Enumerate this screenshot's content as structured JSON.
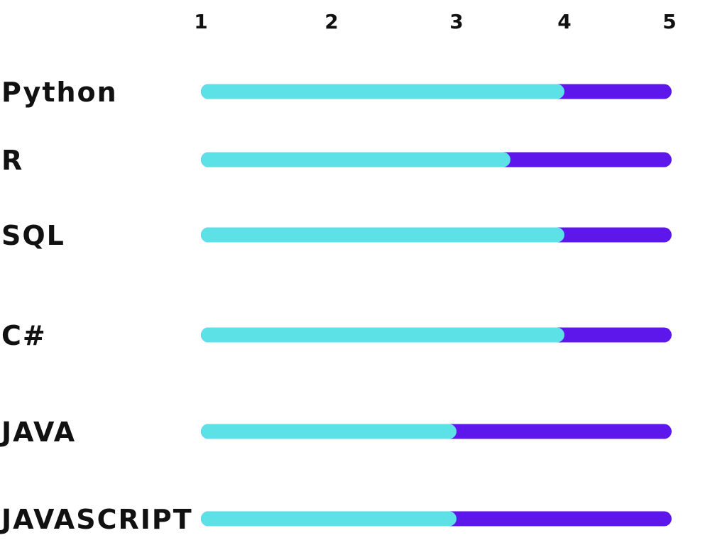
{
  "chart_data": {
    "type": "bar",
    "orientation": "horizontal",
    "x_ticks": [
      "1",
      "2",
      "3",
      "4",
      "5"
    ],
    "xlim": [
      1,
      5
    ],
    "categories": [
      "Python",
      "R",
      "SQL",
      "C#",
      "JAVA",
      "JAVASCRIPT"
    ],
    "values": [
      4,
      3.5,
      4,
      4,
      3,
      3
    ],
    "grid": false,
    "colors": {
      "filled": "#5CE1E6",
      "track": "#5E17EB",
      "text": "#111111"
    }
  }
}
